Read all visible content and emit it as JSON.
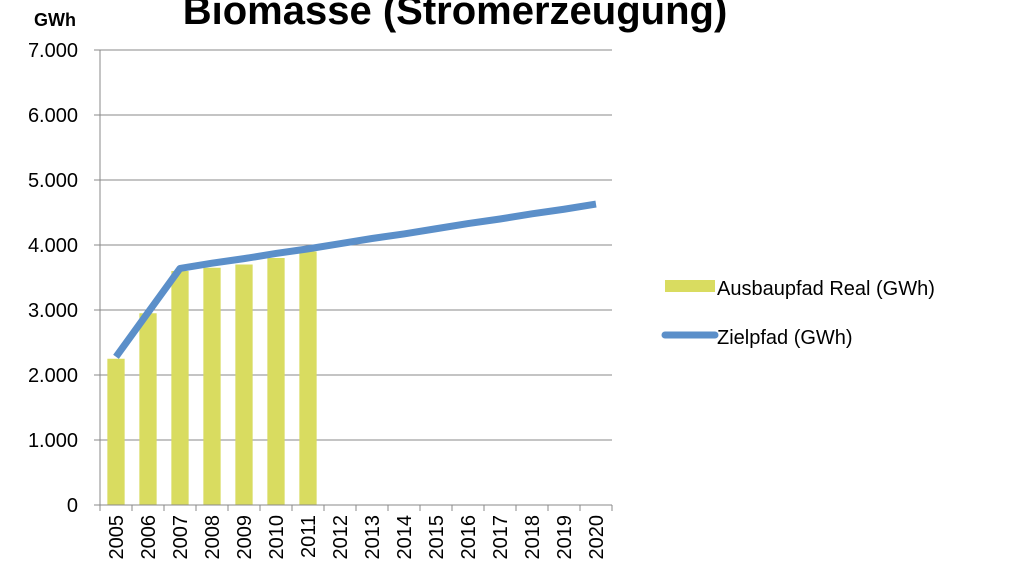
{
  "chart_data": {
    "type": "bar_line",
    "title": "Biomasse (Stromerzeugung)",
    "y_label": "GWh",
    "categories": [
      "2005",
      "2006",
      "2007",
      "2008",
      "2009",
      "2010",
      "2011",
      "2012",
      "2013",
      "2014",
      "2015",
      "2016",
      "2017",
      "2018",
      "2019",
      "2020"
    ],
    "series": [
      {
        "name": "Ausbaupfad Real (GWh)",
        "type": "bar",
        "color": "#d9dc60",
        "values": [
          2250,
          2950,
          3600,
          3650,
          3700,
          3800,
          3900,
          null,
          null,
          null,
          null,
          null,
          null,
          null,
          null,
          null
        ]
      },
      {
        "name": "Zielpfad (GWh)",
        "type": "line",
        "color": "#5b8fc9",
        "values": [
          2280,
          2960,
          3640,
          3720,
          3790,
          3870,
          3940,
          4020,
          4100,
          4170,
          4250,
          4330,
          4400,
          4480,
          4550,
          4630
        ]
      }
    ],
    "ylim": [
      0,
      7000
    ],
    "yticks": [
      {
        "value": 0,
        "label": "0"
      },
      {
        "value": 1000,
        "label": "1.000"
      },
      {
        "value": 2000,
        "label": "2.000"
      },
      {
        "value": 3000,
        "label": "3.000"
      },
      {
        "value": 4000,
        "label": "4.000"
      },
      {
        "value": 5000,
        "label": "5.000"
      },
      {
        "value": 6000,
        "label": "6.000"
      },
      {
        "value": 7000,
        "label": "7.000"
      }
    ],
    "grid": true,
    "legend": "right"
  }
}
